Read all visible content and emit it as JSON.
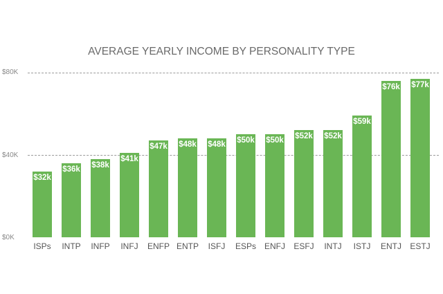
{
  "chart_data": {
    "type": "bar",
    "title": "AVERAGE YEARLY INCOME BY PERSONALITY TYPE",
    "xlabel": "",
    "ylabel": "",
    "ylim": [
      0,
      80
    ],
    "yticks": [
      "$0K",
      "$40K",
      "$80K"
    ],
    "grid": true,
    "categories": [
      "ISPs",
      "INTP",
      "INFP",
      "INFJ",
      "ENFP",
      "ENTP",
      "ISFJ",
      "ESPs",
      "ENFJ",
      "ESFJ",
      "INTJ",
      "ISTJ",
      "ENTJ",
      "ESTJ"
    ],
    "values": [
      32,
      36,
      38,
      41,
      47,
      48,
      48,
      50,
      50,
      52,
      52,
      59,
      76,
      77
    ],
    "value_labels": [
      "$32k",
      "$36k",
      "$38k",
      "$41k",
      "$47k",
      "$48k",
      "$48k",
      "$50k",
      "$50k",
      "$52k",
      "$52k",
      "$59k",
      "$76k",
      "$77k"
    ],
    "bar_color": "#6ab655"
  }
}
